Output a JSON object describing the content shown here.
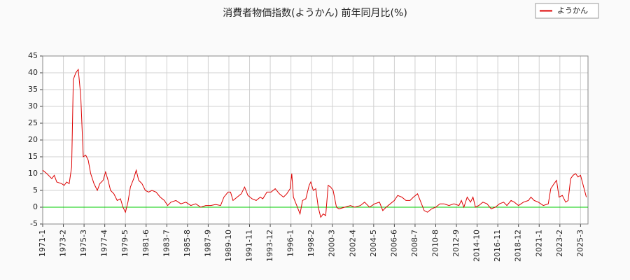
{
  "chart_data": {
    "type": "line",
    "title": "消費者物価指数(ようかん) 前年同月比(%)",
    "x": [
      "1971-1",
      "1971-6",
      "1971-12",
      "1972-3",
      "1972-6",
      "1972-12",
      "1973-3",
      "1973-6",
      "1973-9",
      "1973-12",
      "1974-2",
      "1974-5",
      "1974-8",
      "1974-11",
      "1975-2",
      "1975-5",
      "1975-8",
      "1975-11",
      "1976-3",
      "1976-7",
      "1976-10",
      "1977-2",
      "1977-5",
      "1977-8",
      "1977-11",
      "1978-3",
      "1978-7",
      "1978-11",
      "1979-2",
      "1979-5",
      "1979-8",
      "1979-11",
      "1980-3",
      "1980-6",
      "1980-9",
      "1981-1",
      "1981-5",
      "1981-9",
      "1982-1",
      "1982-6",
      "1982-11",
      "1983-4",
      "1983-8",
      "1983-12",
      "1984-6",
      "1984-12",
      "1985-6",
      "1985-12",
      "1986-6",
      "1986-12",
      "1987-6",
      "1987-12",
      "1988-6",
      "1988-12",
      "1989-4",
      "1989-9",
      "1989-12",
      "1990-3",
      "1990-8",
      "1991-1",
      "1991-5",
      "1991-9",
      "1992-2",
      "1992-7",
      "1992-12",
      "1993-3",
      "1993-8",
      "1994-1",
      "1994-6",
      "1994-11",
      "1995-4",
      "1995-8",
      "1995-12",
      "1996-2",
      "1996-4",
      "1996-8",
      "1996-12",
      "1997-3",
      "1997-7",
      "1997-11",
      "1998-1",
      "1998-4",
      "1998-7",
      "1998-10",
      "1999-1",
      "1999-4",
      "1999-7",
      "1999-10",
      "2000-1",
      "2000-4",
      "2000-8",
      "2000-11",
      "2001-6",
      "2002-1",
      "2002-6",
      "2003-1",
      "2003-6",
      "2003-12",
      "2004-6",
      "2004-12",
      "2005-4",
      "2005-8",
      "2006-1",
      "2006-6",
      "2006-10",
      "2007-3",
      "2007-8",
      "2008-1",
      "2008-5",
      "2008-10",
      "2009-2",
      "2009-6",
      "2009-10",
      "2010-3",
      "2010-8",
      "2011-1",
      "2011-6",
      "2011-12",
      "2012-6",
      "2012-12",
      "2013-3",
      "2013-6",
      "2013-10",
      "2014-2",
      "2014-5",
      "2014-8",
      "2014-12",
      "2015-5",
      "2015-10",
      "2016-3",
      "2016-8",
      "2017-1",
      "2017-6",
      "2017-10",
      "2018-3",
      "2018-7",
      "2018-12",
      "2019-6",
      "2019-12",
      "2020-3",
      "2020-7",
      "2020-12",
      "2021-6",
      "2021-12",
      "2022-3",
      "2022-7",
      "2022-10",
      "2023-1",
      "2023-5",
      "2023-9",
      "2023-12",
      "2024-3",
      "2024-6",
      "2024-9",
      "2024-12",
      "2025-3",
      "2025-10"
    ],
    "series": [
      {
        "name": "ようかん",
        "color": "#dd0000",
        "values": [
          11,
          10,
          8.5,
          9.5,
          7.5,
          7,
          6.5,
          7.5,
          7,
          12,
          38,
          40,
          41,
          33,
          15,
          15.5,
          14,
          10,
          7,
          5,
          7,
          8,
          10.5,
          8,
          5,
          4,
          2,
          2.5,
          0,
          -1.5,
          1.5,
          6,
          8.5,
          11,
          8,
          7,
          5,
          4.5,
          5,
          4.5,
          3,
          2,
          0.5,
          1.5,
          2,
          1,
          1.5,
          0.5,
          1,
          0,
          0.5,
          0.5,
          0.8,
          0.5,
          3,
          4.5,
          4.5,
          2,
          3,
          4,
          6,
          3.5,
          2.5,
          2,
          3,
          2.5,
          4.5,
          4.5,
          5.5,
          4,
          3,
          4,
          5.5,
          10,
          3,
          0.5,
          -2,
          2,
          2.5,
          6.5,
          7.5,
          5,
          5.5,
          0,
          -3,
          -2,
          -2.5,
          6.5,
          6,
          5,
          0,
          -0.5,
          0,
          0.5,
          0,
          0.5,
          1.5,
          0,
          1,
          1.5,
          -1,
          0,
          1,
          2,
          3.5,
          3,
          2,
          2,
          3,
          4,
          1.5,
          -1,
          -1.5,
          -0.5,
          0,
          1,
          1,
          0.5,
          1,
          0.5,
          2,
          0,
          3,
          1.5,
          3,
          0,
          0.5,
          1.5,
          1,
          -0.5,
          0,
          1,
          1.5,
          0.5,
          2,
          1.5,
          0.5,
          1.5,
          2,
          3,
          2,
          1.5,
          0.5,
          1,
          5.5,
          7,
          8,
          3,
          3.5,
          1.5,
          2,
          8.5,
          9.5,
          10,
          9,
          9.5,
          3
        ]
      }
    ],
    "reference_line": {
      "value": 0,
      "color": "#00cc00"
    },
    "xlim": [
      "1971-1",
      "2025-12"
    ],
    "xticks": [
      "1971-1",
      "1973-2",
      "1975-3",
      "1977-4",
      "1979-5",
      "1981-6",
      "1983-7",
      "1985-8",
      "1987-9",
      "1989-10",
      "1991-11",
      "1993-12",
      "1996-1",
      "1998-2",
      "2000-3",
      "2002-4",
      "2004-5",
      "2006-6",
      "2008-7",
      "2010-8",
      "2012-9",
      "2014-10",
      "2016-11",
      "2018-12",
      "2021-1",
      "2023-2",
      "2025-3"
    ],
    "ylim": [
      -5,
      45
    ],
    "yticks": [
      -5,
      0,
      5,
      10,
      15,
      20,
      25,
      30,
      35,
      40,
      45
    ],
    "grid": true,
    "legend": "top-right"
  }
}
